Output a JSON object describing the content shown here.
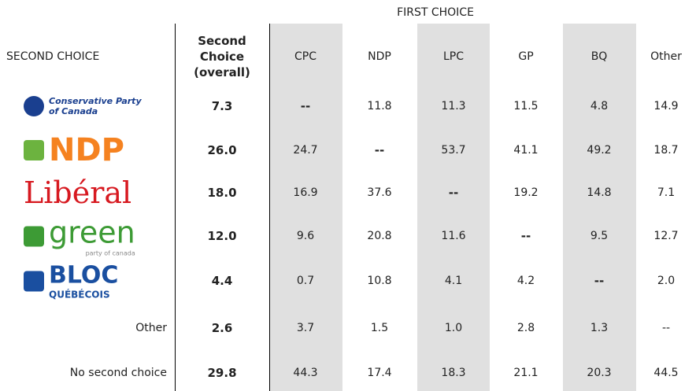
{
  "table": {
    "group_header": "FIRST CHOICE",
    "row_header": "SECOND CHOICE",
    "overall_header": "Second Choice (overall)",
    "columns": [
      "CPC",
      "NDP",
      "LPC",
      "GP",
      "BQ",
      "Other"
    ],
    "rows": [
      {
        "logo": [
          "Conservative Party",
          "of Canada"
        ],
        "overall": "7.3",
        "cells": [
          "--",
          "11.8",
          "11.3",
          "11.5",
          "4.8",
          "14.9"
        ]
      },
      {
        "logo": [
          "NDP"
        ],
        "overall": "26.0",
        "cells": [
          "24.7",
          "--",
          "53.7",
          "41.1",
          "49.2",
          "18.7"
        ]
      },
      {
        "logo": [
          "Libéral"
        ],
        "overall": "18.0",
        "cells": [
          "16.9",
          "37.6",
          "--",
          "19.2",
          "14.8",
          "7.1"
        ]
      },
      {
        "logo": [
          "green",
          "party of canada"
        ],
        "overall": "12.0",
        "cells": [
          "9.6",
          "20.8",
          "11.6",
          "--",
          "9.5",
          "12.7"
        ]
      },
      {
        "logo": [
          "BLOC",
          "QUÉBÉCOIS"
        ],
        "overall": "4.4",
        "cells": [
          "0.7",
          "10.8",
          "4.1",
          "4.2",
          "--",
          "2.0"
        ]
      },
      {
        "label": "Other",
        "overall": "2.6",
        "cells": [
          "3.7",
          "1.5",
          "1.0",
          "2.8",
          "1.3",
          "--"
        ]
      },
      {
        "label": "No second choice",
        "overall": "29.8",
        "cells": [
          "44.3",
          "17.4",
          "18.3",
          "21.1",
          "20.3",
          "44.5"
        ]
      }
    ]
  }
}
